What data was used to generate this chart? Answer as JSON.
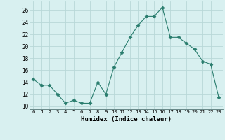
{
  "x": [
    0,
    1,
    2,
    3,
    4,
    5,
    6,
    7,
    8,
    9,
    10,
    11,
    12,
    13,
    14,
    15,
    16,
    17,
    18,
    19,
    20,
    21,
    22,
    23
  ],
  "y": [
    14.5,
    13.5,
    13.5,
    12.0,
    10.5,
    11.0,
    10.5,
    10.5,
    14.0,
    12.0,
    16.5,
    19.0,
    21.5,
    23.5,
    25.0,
    25.0,
    26.5,
    21.5,
    21.5,
    20.5,
    19.5,
    17.5,
    17.0,
    11.5
  ],
  "line_color": "#2a7d6e",
  "marker": "D",
  "marker_size": 2.5,
  "bg_color": "#d8f0f0",
  "grid_color": "#b8d8d8",
  "xlabel": "Humidex (Indice chaleur)",
  "xlim": [
    -0.5,
    23.5
  ],
  "ylim": [
    9.5,
    27.5
  ],
  "yticks": [
    10,
    12,
    14,
    16,
    18,
    20,
    22,
    24,
    26
  ],
  "xticks": [
    0,
    1,
    2,
    3,
    4,
    5,
    6,
    7,
    8,
    9,
    10,
    11,
    12,
    13,
    14,
    15,
    16,
    17,
    18,
    19,
    20,
    21,
    22,
    23
  ]
}
